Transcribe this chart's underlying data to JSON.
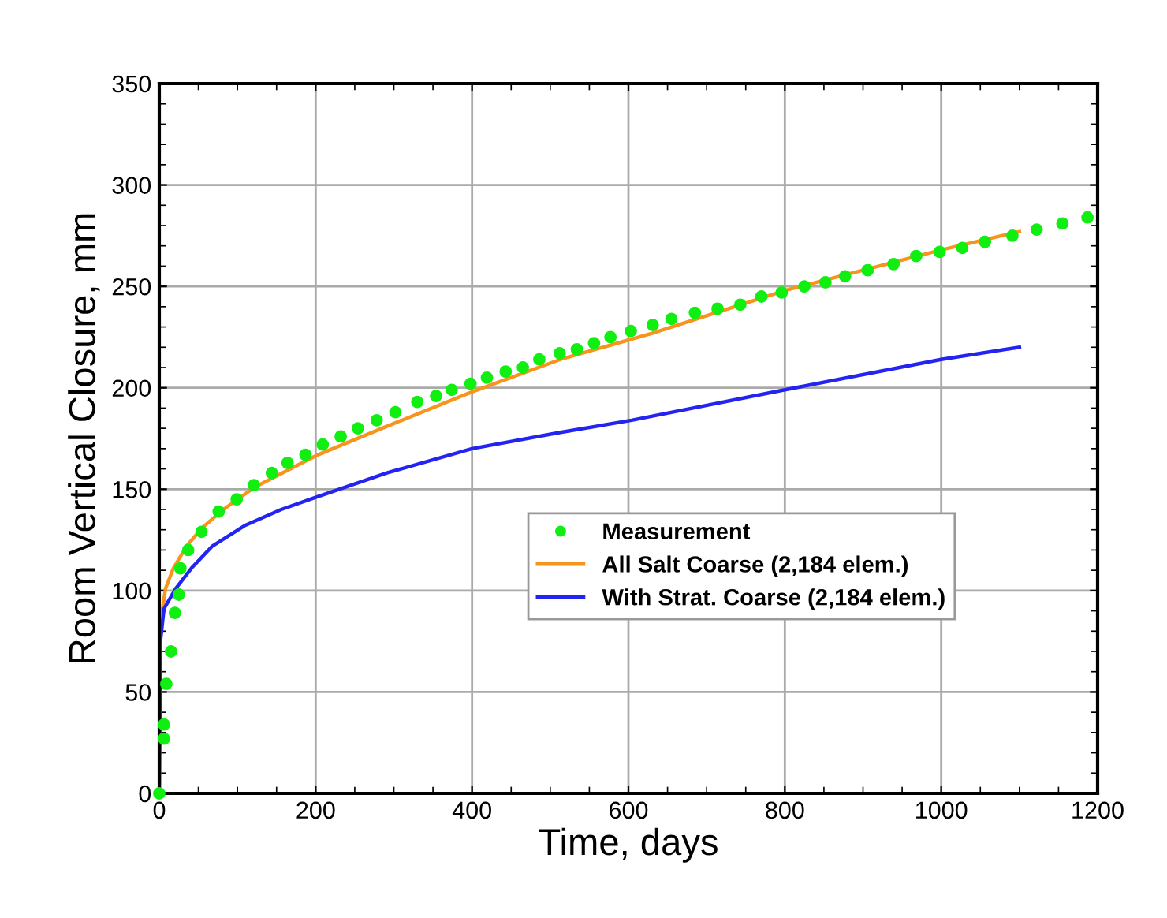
{
  "chart_data": {
    "type": "line",
    "xlabel": "Time, days",
    "ylabel": "Room Vertical Closure, mm",
    "xlim": [
      0,
      1200
    ],
    "xticks": [
      0,
      200,
      400,
      600,
      800,
      1000,
      1200
    ],
    "ylim": [
      0,
      350
    ],
    "yticks": [
      0,
      50,
      100,
      150,
      200,
      250,
      300,
      350
    ],
    "grid": true,
    "legend": "right",
    "series": [
      {
        "name": "Measurement",
        "type": "scatter",
        "marker": "circle",
        "color": "#11ee11",
        "x": [
          0,
          6,
          6,
          9,
          15,
          20,
          25,
          27,
          37,
          54,
          76,
          99,
          121,
          144,
          164,
          187,
          209,
          232,
          254,
          278,
          302,
          330,
          354,
          374,
          398,
          419,
          443,
          465,
          486,
          512,
          534,
          556,
          577,
          603,
          631,
          655,
          685,
          714,
          743,
          770,
          796,
          825,
          852,
          877,
          906,
          939,
          968,
          998,
          1027,
          1056,
          1091,
          1122,
          1155,
          1187
        ],
        "values": [
          0,
          27,
          34,
          54,
          70,
          89,
          98,
          111,
          120,
          129,
          139,
          145,
          152,
          158,
          163,
          167,
          172,
          176,
          180,
          184,
          188,
          193,
          196,
          199,
          202,
          205,
          208,
          210,
          214,
          217,
          219,
          222,
          225,
          228,
          231,
          234,
          237,
          239,
          241,
          245,
          247,
          250,
          252,
          255,
          258,
          261,
          265,
          267,
          269,
          272,
          275,
          278,
          281,
          284
        ]
      },
      {
        "name": "All Salt Coarse (2,184 elem.)",
        "color": "#f7941d",
        "x": [
          0,
          0.5,
          2,
          8,
          18,
          35,
          55,
          82,
          122,
          203,
          291,
          400,
          513,
          631,
          800,
          1000,
          1100
        ],
        "values": [
          0,
          50,
          85,
          101,
          111,
          122,
          131,
          140,
          151,
          167,
          181,
          198,
          214,
          227,
          248,
          268,
          277
        ]
      },
      {
        "name": "With Strat. Coarse (2,184 elem.)",
        "color": "#2323f2",
        "x": [
          0,
          1.5,
          6,
          21,
          41,
          68,
          109,
          156,
          200,
          291,
          400,
          513,
          604,
          800,
          1000,
          1100
        ],
        "values": [
          0,
          75,
          91,
          101,
          111,
          122,
          132,
          140,
          146,
          158,
          170,
          178,
          184,
          199,
          214,
          220
        ]
      }
    ]
  }
}
